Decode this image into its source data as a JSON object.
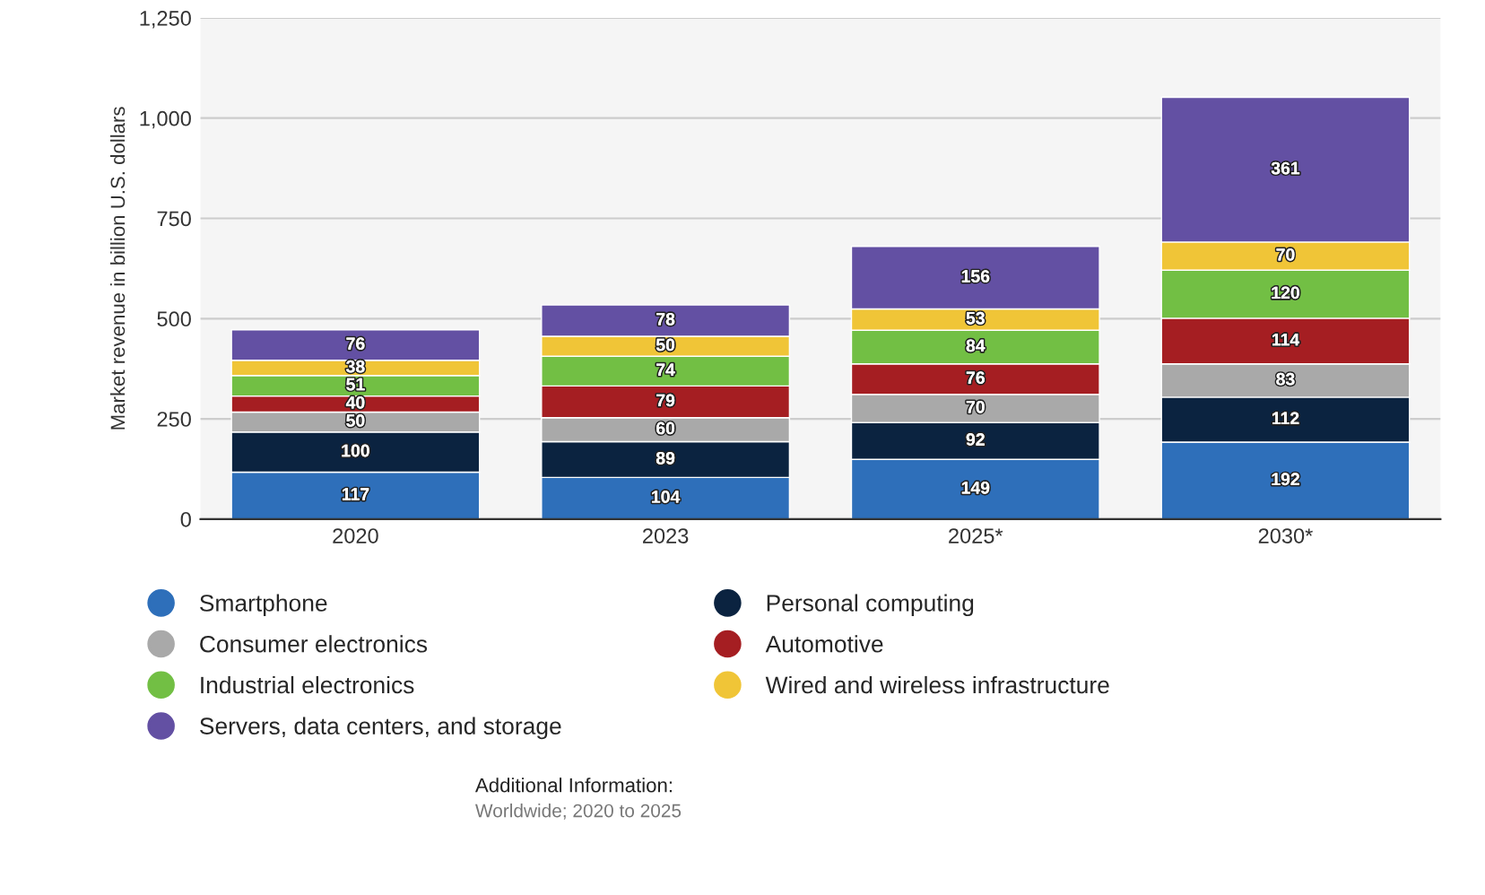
{
  "chart_data": {
    "type": "bar",
    "stacked": true,
    "data_labels": true,
    "grid": "y",
    "legend": "bottom",
    "ylabel": "Market revenue in billion U.S. dollars",
    "categories": [
      "2020",
      "2023",
      "2025*",
      "2030*"
    ],
    "ylim": [
      0,
      1250
    ],
    "yticks": [
      0,
      250,
      500,
      750,
      {
        "value": 1000,
        "label": "1,000"
      },
      {
        "value": 1250,
        "label": "1,250"
      }
    ],
    "series": [
      {
        "name": "Smartphone",
        "color": "#2e6fba",
        "values": [
          117,
          104,
          149,
          192
        ]
      },
      {
        "name": "Personal computing",
        "color": "#0b2340",
        "values": [
          100,
          89,
          92,
          112
        ]
      },
      {
        "name": "Consumer electronics",
        "color": "#a9a9a9",
        "values": [
          50,
          60,
          70,
          83
        ]
      },
      {
        "name": "Automotive",
        "color": "#a51e22",
        "values": [
          40,
          79,
          76,
          114
        ]
      },
      {
        "name": "Industrial electronics",
        "color": "#72bf44",
        "values": [
          51,
          74,
          84,
          120
        ]
      },
      {
        "name": "Wired and wireless infrastructure",
        "color": "#f0c537",
        "values": [
          38,
          50,
          53,
          70
        ]
      },
      {
        "name": "Servers, data centers, and storage",
        "color": "#6350a3",
        "values": [
          76,
          78,
          156,
          361
        ]
      }
    ],
    "annotations": [
      "Additional Information:",
      "Worldwide; 2020 to 2025"
    ]
  }
}
